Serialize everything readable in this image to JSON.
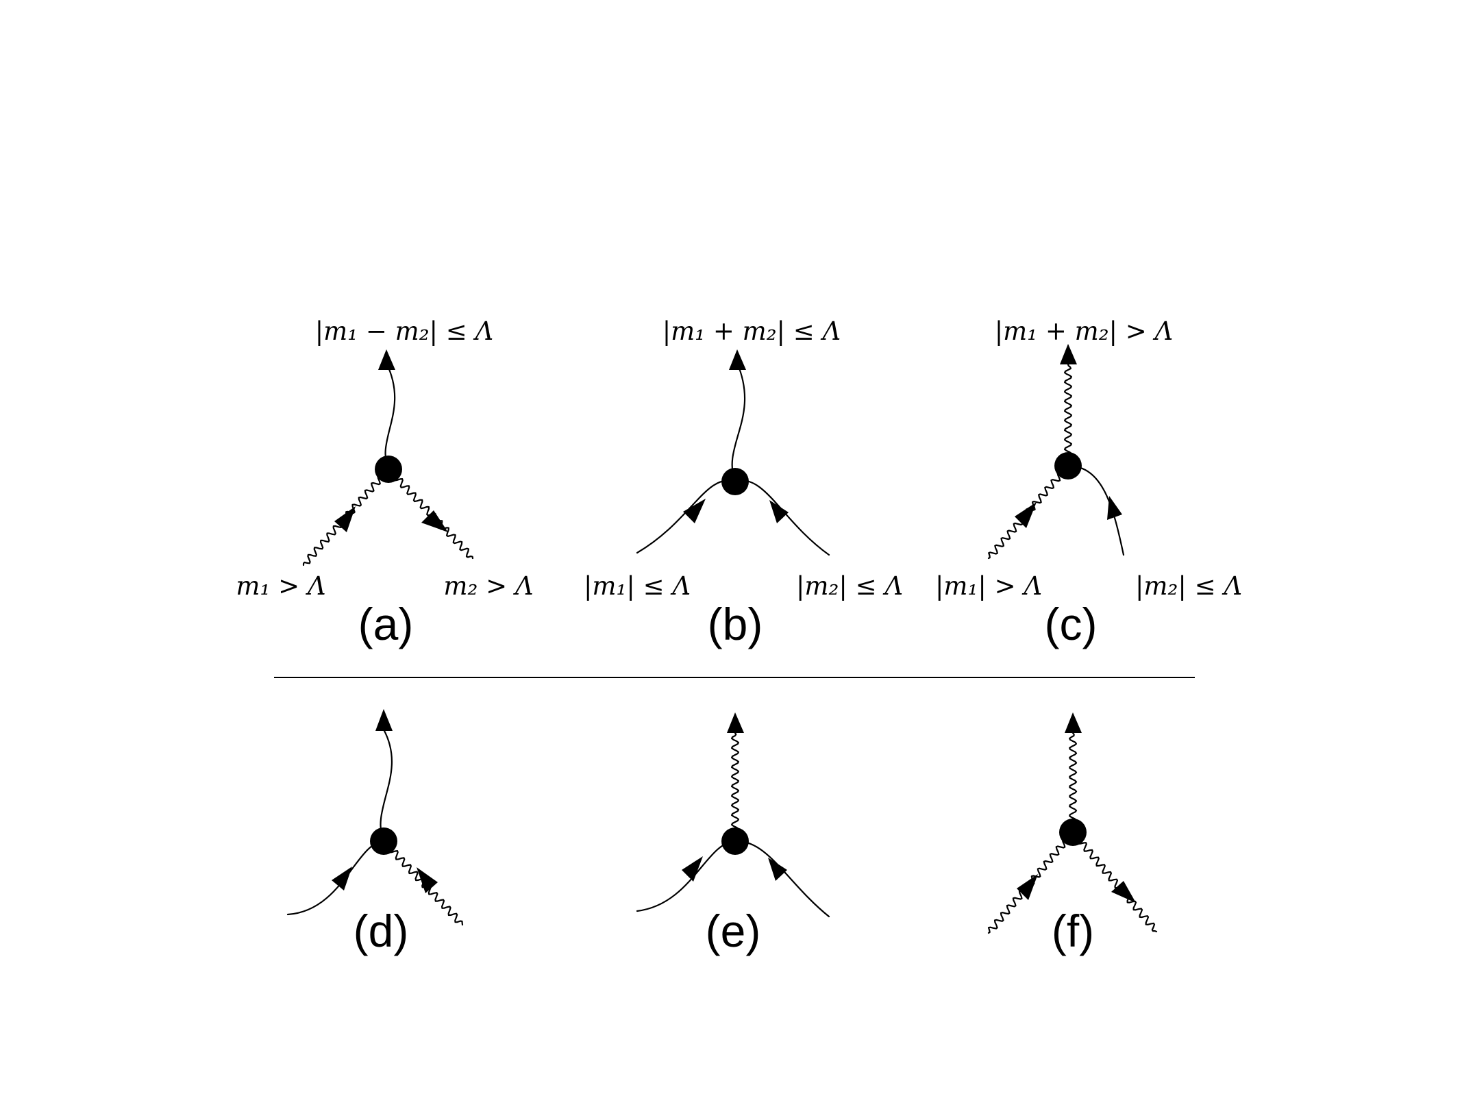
{
  "panels": [
    {
      "id": "a",
      "label": "(a)",
      "top_condition": "|m₁ − m₂| ≤ Λ",
      "left_condition": "m₁ > Λ",
      "right_condition": "m₂ > Λ",
      "lines": {
        "top": "smooth",
        "left": "wavy",
        "right": "wavy"
      },
      "arrows": {
        "top": "out",
        "left": "in",
        "right": "out"
      }
    },
    {
      "id": "b",
      "label": "(b)",
      "top_condition": "|m₁ + m₂| ≤ Λ",
      "left_condition": "|m₁| ≤ Λ",
      "right_condition": "|m₂| ≤ Λ",
      "lines": {
        "top": "smooth",
        "left": "smooth",
        "right": "smooth"
      },
      "arrows": {
        "top": "out",
        "left": "in",
        "right": "in"
      }
    },
    {
      "id": "c",
      "label": "(c)",
      "top_condition": "|m₁ + m₂| > Λ",
      "left_condition": "|m₁| > Λ",
      "right_condition": "|m₂| ≤ Λ",
      "lines": {
        "top": "wavy",
        "left": "wavy",
        "right": "smooth"
      },
      "arrows": {
        "top": "out",
        "left": "in",
        "right": "in"
      }
    },
    {
      "id": "d",
      "label": "(d)",
      "top_condition": "",
      "left_condition": "",
      "right_condition": "",
      "lines": {
        "top": "smooth",
        "left": "smooth",
        "right": "wavy"
      },
      "arrows": {
        "top": "out",
        "left": "in",
        "right": "in"
      }
    },
    {
      "id": "e",
      "label": "(e)",
      "top_condition": "",
      "left_condition": "",
      "right_condition": "",
      "lines": {
        "top": "wavy",
        "left": "smooth",
        "right": "smooth"
      },
      "arrows": {
        "top": "out",
        "left": "in",
        "right": "in"
      }
    },
    {
      "id": "f",
      "label": "(f)",
      "top_condition": "",
      "left_condition": "",
      "right_condition": "",
      "lines": {
        "top": "wavy",
        "left": "wavy",
        "right": "wavy"
      },
      "arrows": {
        "top": "out",
        "left": "in",
        "right": "out"
      }
    }
  ]
}
